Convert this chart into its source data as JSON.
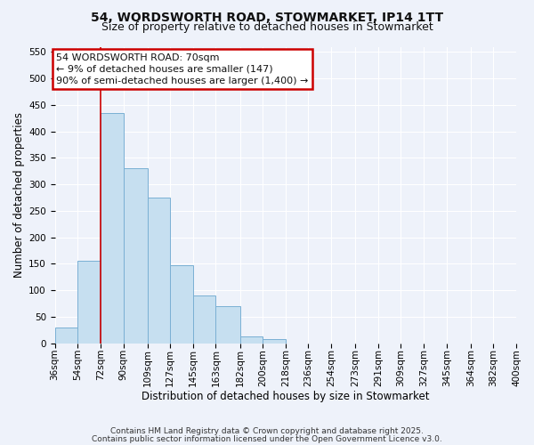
{
  "title_line1": "54, WORDSWORTH ROAD, STOWMARKET, IP14 1TT",
  "title_line2": "Size of property relative to detached houses in Stowmarket",
  "xlabel": "Distribution of detached houses by size in Stowmarket",
  "ylabel": "Number of detached properties",
  "bar_values": [
    30,
    155,
    435,
    330,
    275,
    148,
    90,
    70,
    12,
    8,
    0,
    0,
    0,
    0,
    0,
    0,
    0,
    0,
    0,
    0
  ],
  "bin_edges": [
    36,
    54,
    72,
    90,
    109,
    127,
    145,
    163,
    182,
    200,
    218,
    236,
    254,
    273,
    291,
    309,
    327,
    345,
    364,
    382,
    400
  ],
  "x_labels": [
    "36sqm",
    "54sqm",
    "72sqm",
    "90sqm",
    "109sqm",
    "127sqm",
    "145sqm",
    "163sqm",
    "182sqm",
    "200sqm",
    "218sqm",
    "236sqm",
    "254sqm",
    "273sqm",
    "291sqm",
    "309sqm",
    "327sqm",
    "345sqm",
    "364sqm",
    "382sqm",
    "400sqm"
  ],
  "bar_color": "#c6dff0",
  "bar_edge_color": "#7ab0d4",
  "vline_x": 72,
  "vline_color": "#cc0000",
  "ylim": [
    0,
    560
  ],
  "yticks": [
    0,
    50,
    100,
    150,
    200,
    250,
    300,
    350,
    400,
    450,
    500,
    550
  ],
  "annotation_title": "54 WORDSWORTH ROAD: 70sqm",
  "annotation_line2": "← 9% of detached houses are smaller (147)",
  "annotation_line3": "90% of semi-detached houses are larger (1,400) →",
  "annotation_box_facecolor": "#ffffff",
  "annotation_box_edgecolor": "#cc0000",
  "footer_line1": "Contains HM Land Registry data © Crown copyright and database right 2025.",
  "footer_line2": "Contains public sector information licensed under the Open Government Licence v3.0.",
  "bg_color": "#eef2fa",
  "grid_color": "#ffffff",
  "title_fontsize": 10,
  "subtitle_fontsize": 9,
  "label_fontsize": 8.5,
  "tick_fontsize": 7.5,
  "footer_fontsize": 6.5,
  "annotation_fontsize": 8
}
